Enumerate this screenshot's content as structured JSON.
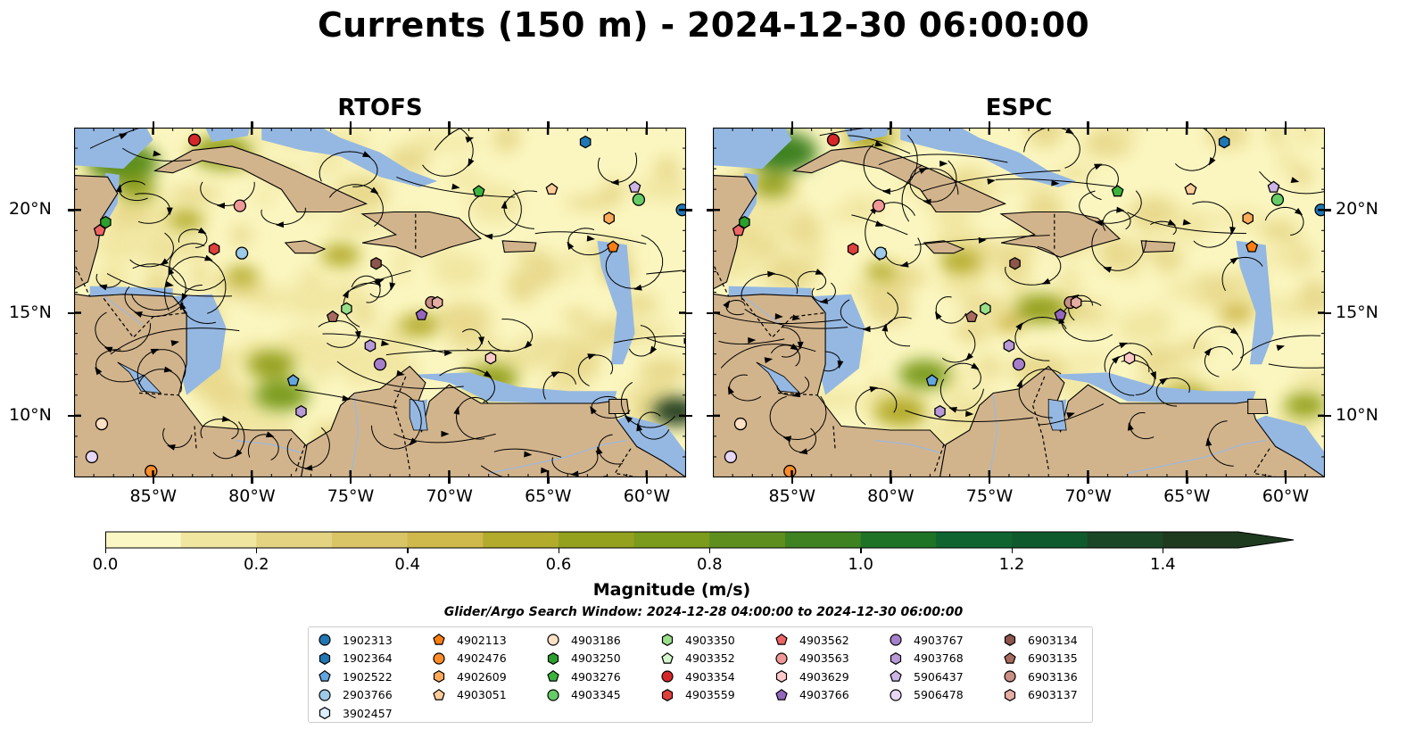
{
  "title": "Currents (150 m) - 2024-12-30 06:00:00",
  "panels": [
    {
      "id": "rtofs",
      "title": "RTOFS"
    },
    {
      "id": "espc",
      "title": "ESPC"
    }
  ],
  "map": {
    "lon_range": [
      -89,
      -58
    ],
    "lat_range": [
      7,
      24
    ],
    "lon_ticks": [
      -85,
      -80,
      -75,
      -70,
      -65,
      -60
    ],
    "lon_labels": [
      "85°W",
      "80°W",
      "75°W",
      "70°W",
      "65°W",
      "60°W"
    ],
    "lat_ticks": [
      20,
      15,
      10
    ],
    "lat_labels": [
      "20°N",
      "15°N",
      "10°N"
    ],
    "colors": {
      "land": "#d2b48c",
      "ocean_shallow": "#95b8e2",
      "current_low": "#fbf6c0",
      "current_high": "#1b2a14"
    }
  },
  "colorbar": {
    "label": "Magnitude (m/s)",
    "ticks": [
      "0.0",
      "0.2",
      "0.4",
      "0.6",
      "0.8",
      "1.0",
      "1.2",
      "1.4"
    ],
    "tick_values": [
      0.0,
      0.2,
      0.4,
      0.6,
      0.8,
      1.0,
      1.2,
      1.4
    ],
    "min": 0.0,
    "max": 1.5,
    "extend": "max",
    "colors": [
      "#fbf7c4",
      "#f1e6a0",
      "#e4d381",
      "#d9c466",
      "#cfb84c",
      "#b3ab2c",
      "#94a11e",
      "#7a9b1b",
      "#5e8f1e",
      "#3f8221",
      "#1e7326",
      "#0f6430",
      "#0f5a2c",
      "#1a4726",
      "#1e3a1f"
    ]
  },
  "search_window": "Glider/Argo Search Window: 2024-12-28 04:00:00 to 2024-12-30 06:00:00",
  "legend": {
    "columns": [
      [
        {
          "id": "1902313",
          "marker": "circle",
          "color": "#1f77b4"
        },
        {
          "id": "1902364",
          "marker": "hexagon",
          "color": "#1f77b4"
        },
        {
          "id": "1902522",
          "marker": "pentagon",
          "color": "#62a6dd"
        },
        {
          "id": "2903766",
          "marker": "circle",
          "color": "#9ecae9"
        },
        {
          "id": "3902457",
          "marker": "hexagon",
          "color": "#dbeefb"
        }
      ],
      [
        {
          "id": "4902113",
          "marker": "pentagon",
          "color": "#ff7f0e"
        },
        {
          "id": "4902476",
          "marker": "circle",
          "color": "#ff8c28"
        },
        {
          "id": "4902609",
          "marker": "hexagon",
          "color": "#ffaa5a"
        },
        {
          "id": "4903051",
          "marker": "pentagon",
          "color": "#ffcc99"
        }
      ],
      [
        {
          "id": "4903186",
          "marker": "circle",
          "color": "#ffe0c4"
        },
        {
          "id": "4903250",
          "marker": "hexagon",
          "color": "#2ca02c"
        },
        {
          "id": "4903276",
          "marker": "pentagon",
          "color": "#3cb43c"
        },
        {
          "id": "4903345",
          "marker": "circle",
          "color": "#66cc66"
        }
      ],
      [
        {
          "id": "4903350",
          "marker": "hexagon",
          "color": "#98df8a"
        },
        {
          "id": "4903352",
          "marker": "pentagon",
          "color": "#d4f7cc"
        },
        {
          "id": "4903354",
          "marker": "circle",
          "color": "#d62728"
        },
        {
          "id": "4903559",
          "marker": "hexagon",
          "color": "#e0403d"
        }
      ],
      [
        {
          "id": "4903562",
          "marker": "pentagon",
          "color": "#ec6464"
        },
        {
          "id": "4903563",
          "marker": "circle",
          "color": "#f09898"
        },
        {
          "id": "4903629",
          "marker": "hexagon",
          "color": "#ffc9c9"
        },
        {
          "id": "4903766",
          "marker": "pentagon",
          "color": "#9467bd"
        }
      ],
      [
        {
          "id": "4903767",
          "marker": "circle",
          "color": "#a57fcb"
        },
        {
          "id": "4903768",
          "marker": "hexagon",
          "color": "#b89ad8"
        },
        {
          "id": "5906437",
          "marker": "pentagon",
          "color": "#cdb6e6"
        },
        {
          "id": "5906478",
          "marker": "circle",
          "color": "#e8d6f5"
        }
      ],
      [
        {
          "id": "6903134",
          "marker": "hexagon",
          "color": "#8c564b"
        },
        {
          "id": "6903135",
          "marker": "pentagon",
          "color": "#a66b5e"
        },
        {
          "id": "6903136",
          "marker": "circle",
          "color": "#c98e84"
        },
        {
          "id": "6903137",
          "marker": "hexagon",
          "color": "#e6aea3"
        }
      ]
    ]
  },
  "floats": [
    {
      "id": "4903354",
      "lon": -82.9,
      "lat": 23.4
    },
    {
      "id": "1902364",
      "lon": -63.1,
      "lat": 23.3
    },
    {
      "id": "5906437",
      "lon": -60.6,
      "lat": 21.1
    },
    {
      "id": "4903051",
      "lon": -64.8,
      "lat": 21.0
    },
    {
      "id": "4903276",
      "lon": -68.5,
      "lat": 20.9
    },
    {
      "id": "4903345",
      "lon": -60.4,
      "lat": 20.5
    },
    {
      "id": "4903563",
      "lon": -80.6,
      "lat": 20.2
    },
    {
      "id": "1902313",
      "lon": -58.2,
      "lat": 20.0
    },
    {
      "id": "4902609",
      "lon": -61.9,
      "lat": 19.6
    },
    {
      "id": "4903250",
      "lon": -87.4,
      "lat": 19.4
    },
    {
      "id": "4903562",
      "lon": -87.7,
      "lat": 19.0
    },
    {
      "id": "4902113",
      "lon": -61.7,
      "lat": 18.2
    },
    {
      "id": "4903559",
      "lon": -81.9,
      "lat": 18.1
    },
    {
      "id": "2903766",
      "lon": -80.5,
      "lat": 17.9
    },
    {
      "id": "6903134",
      "lon": -73.7,
      "lat": 17.4
    },
    {
      "id": "6903136",
      "lon": -70.9,
      "lat": 15.5
    },
    {
      "id": "6903137",
      "lon": -70.6,
      "lat": 15.5
    },
    {
      "id": "4903350",
      "lon": -75.2,
      "lat": 15.2
    },
    {
      "id": "6903135",
      "lon": -75.9,
      "lat": 14.8
    },
    {
      "id": "4903766",
      "lon": -71.4,
      "lat": 14.9
    },
    {
      "id": "4903768",
      "lon": -74.0,
      "lat": 13.4
    },
    {
      "id": "4903629",
      "lon": -67.9,
      "lat": 12.8
    },
    {
      "id": "4903767",
      "lon": -73.5,
      "lat": 12.5
    },
    {
      "id": "1902522",
      "lon": -77.9,
      "lat": 11.7
    },
    {
      "id": "4903766b",
      "lon": -77.5,
      "lat": 10.2,
      "ref": "4903768"
    },
    {
      "id": "4903186",
      "lon": -87.6,
      "lat": 9.6
    },
    {
      "id": "5906478",
      "lon": -88.1,
      "lat": 8.0
    },
    {
      "id": "4902476",
      "lon": -85.1,
      "lat": 7.3
    }
  ]
}
